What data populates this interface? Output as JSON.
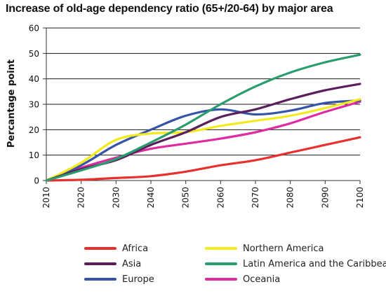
{
  "chart_data": {
    "type": "line",
    "title": "Increase of old-age dependency ratio (65+/20-64) by major area",
    "xlabel": "",
    "ylabel": "Percantage point",
    "x": [
      2010,
      2020,
      2030,
      2040,
      2050,
      2060,
      2070,
      2080,
      2090,
      2100
    ],
    "xlim": [
      2010,
      2100
    ],
    "ylim": [
      0,
      60
    ],
    "yticks": [
      0,
      10,
      20,
      30,
      40,
      50,
      60
    ],
    "grid": "horizontal",
    "legend_position": "bottom",
    "series": [
      {
        "name": "Africa",
        "color": "#e8312f",
        "values": [
          0,
          0.3,
          1,
          1.7,
          3.5,
          6,
          8,
          11,
          14,
          17
        ]
      },
      {
        "name": "Northern America",
        "color": "#f2ea1f",
        "values": [
          0,
          7,
          16,
          18.5,
          19,
          21.5,
          23.5,
          25.5,
          28.5,
          32
        ]
      },
      {
        "name": "Asia",
        "color": "#5b1f5e",
        "values": [
          0,
          4.5,
          8,
          14,
          19,
          25,
          28,
          32,
          35.5,
          38
        ]
      },
      {
        "name": "Latin America and the Caribbean",
        "color": "#2a9d6e",
        "values": [
          0,
          4,
          8.5,
          15,
          22,
          30,
          37,
          42.5,
          46.5,
          49.5
        ]
      },
      {
        "name": "Europe",
        "color": "#3554a5",
        "values": [
          0,
          6,
          14,
          20,
          25.5,
          28,
          26,
          27.5,
          30.5,
          31.5
        ]
      },
      {
        "name": "Oceania",
        "color": "#df2aa0",
        "values": [
          0,
          5,
          9,
          12.5,
          14.5,
          16.5,
          19,
          22.5,
          27,
          31
        ]
      }
    ]
  }
}
